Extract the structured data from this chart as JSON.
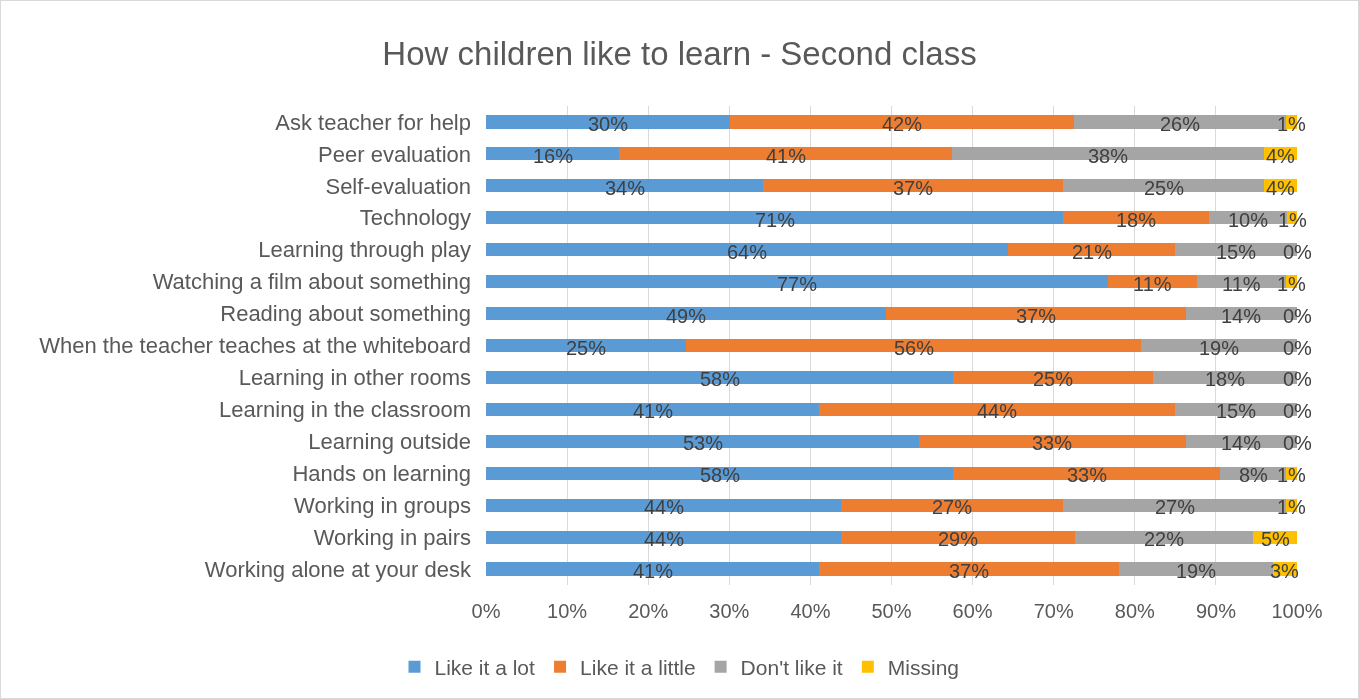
{
  "chart_data": {
    "type": "bar",
    "orientation": "horizontal",
    "stacked": true,
    "title": "How children like to learn - Second class",
    "categories": [
      "Ask teacher for help",
      "Peer evaluation",
      "Self-evaluation",
      "Technology",
      "Learning through play",
      "Watching a film about something",
      "Reading about something",
      "When the teacher teaches at the whiteboard",
      "Learning in other rooms",
      "Learning in the classroom",
      "Learning outside",
      "Hands on learning",
      "Working in groups",
      "Working in pairs",
      "Working alone at your desk"
    ],
    "series": [
      {
        "name": "Like it a lot",
        "color": "#5b9bd5",
        "values": [
          30.1,
          16.4,
          34.2,
          71.2,
          64.4,
          76.7,
          49.3,
          24.7,
          57.6,
          41.1,
          53.4,
          57.6,
          43.8,
          43.8,
          41.1
        ],
        "value_labels": [
          "30%",
          "16%",
          "34%",
          "71%",
          "64%",
          "77%",
          "49%",
          "25%",
          "58%",
          "41%",
          "53%",
          "58%",
          "44%",
          "44%",
          "41%"
        ]
      },
      {
        "name": "Like it a little",
        "color": "#ed7d31",
        "values": [
          42.4,
          41.1,
          37.0,
          17.9,
          20.6,
          11.0,
          37.0,
          56.1,
          24.6,
          43.8,
          32.9,
          32.9,
          27.4,
          28.8,
          37.0
        ],
        "value_labels": [
          "42%",
          "41%",
          "37%",
          "18%",
          "21%",
          "11%",
          "37%",
          "56%",
          "25%",
          "44%",
          "33%",
          "33%",
          "27%",
          "29%",
          "37%"
        ]
      },
      {
        "name": "Don't like it",
        "color": "#a5a5a5",
        "values": [
          26.2,
          38.4,
          24.7,
          9.7,
          15.0,
          10.9,
          13.7,
          19.2,
          17.8,
          15.1,
          13.7,
          8.2,
          27.4,
          22.0,
          18.9
        ],
        "value_labels": [
          "26%",
          "38%",
          "25%",
          "10%",
          "15%",
          "11%",
          "14%",
          "19%",
          "18%",
          "15%",
          "14%",
          "8%",
          "27%",
          "22%",
          "19%"
        ]
      },
      {
        "name": "Missing",
        "color": "#ffc000",
        "values": [
          1.3,
          4.1,
          4.1,
          1.2,
          0,
          1.4,
          0,
          0,
          0,
          0,
          0,
          1.3,
          1.4,
          5.4,
          3.0
        ],
        "value_labels": [
          "1%",
          "4%",
          "4%",
          "1%",
          "0%",
          "1%",
          "0%",
          "0%",
          "0%",
          "0%",
          "0%",
          "1%",
          "1%",
          "5%",
          "3%"
        ]
      }
    ],
    "xlim": [
      0,
      100
    ],
    "xticks": [
      {
        "value": 0,
        "label": "0%"
      },
      {
        "value": 10,
        "label": "10%"
      },
      {
        "value": 20,
        "label": "20%"
      },
      {
        "value": 30,
        "label": "30%"
      },
      {
        "value": 40,
        "label": "40%"
      },
      {
        "value": 50,
        "label": "50%"
      },
      {
        "value": 60,
        "label": "60%"
      },
      {
        "value": 70,
        "label": "70%"
      },
      {
        "value": 80,
        "label": "80%"
      },
      {
        "value": 90,
        "label": "90%"
      },
      {
        "value": 100,
        "label": "100%"
      }
    ],
    "grid": "x",
    "legend": "bottom"
  }
}
